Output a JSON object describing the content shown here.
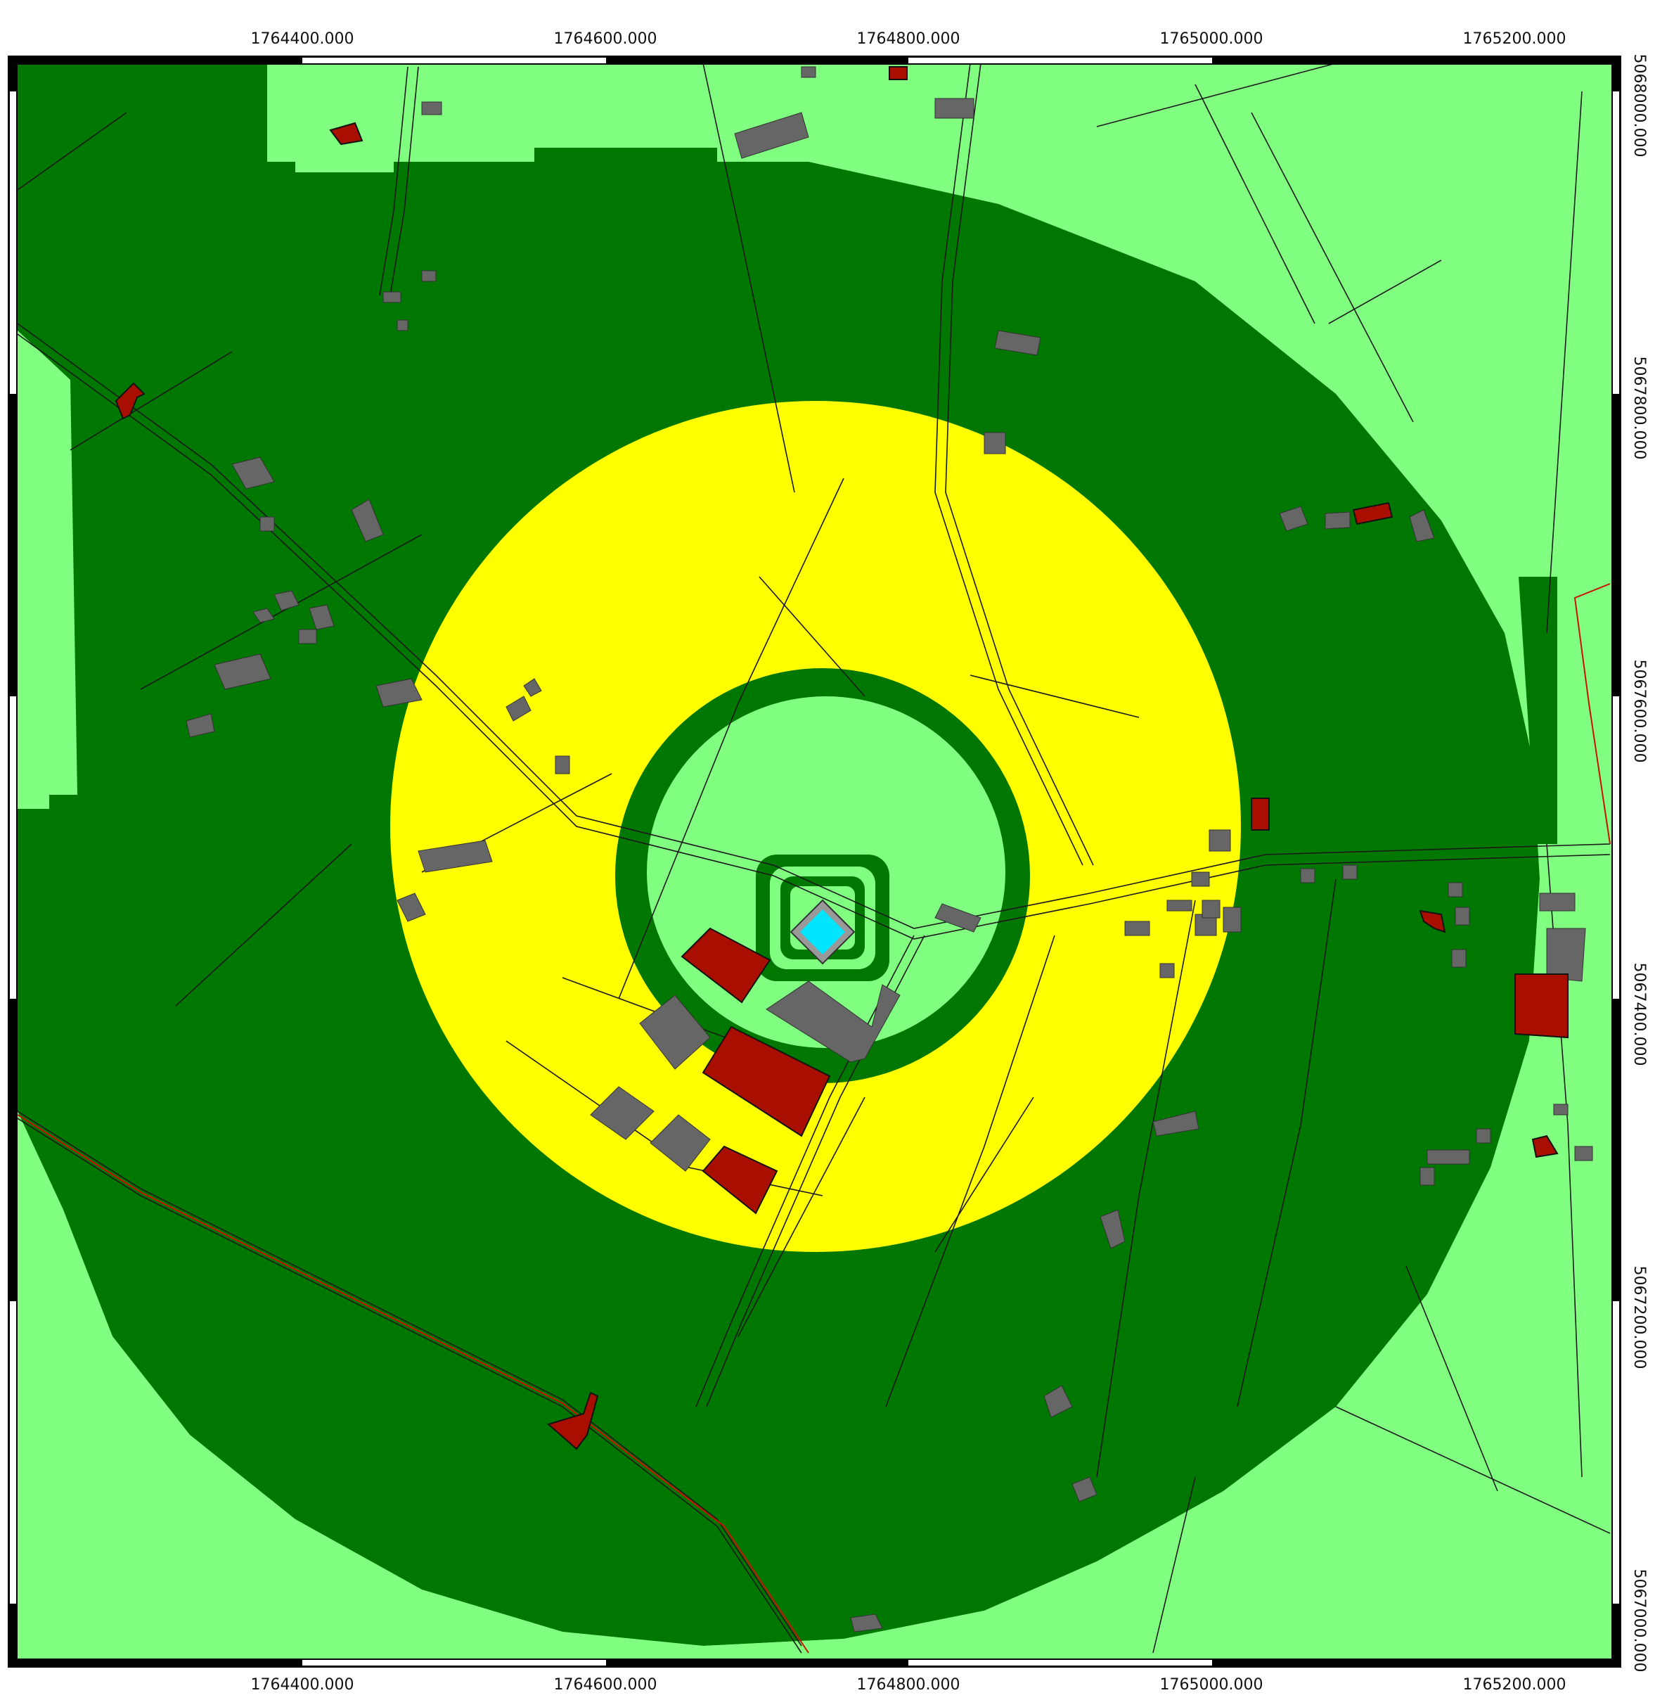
{
  "map": {
    "x_axis_labels_top": [
      "1764400.000",
      "1764600.000",
      "1764800.000",
      "1765000.000",
      "1765200.000"
    ],
    "x_axis_labels_bottom": [
      "1764400.000",
      "1764600.000",
      "1764800.000",
      "1765000.000",
      "1765200.000"
    ],
    "y_axis_labels_right": [
      "5068000.000",
      "5067800.000",
      "5067600.000",
      "5067400.000",
      "5067200.000",
      "5067000.000"
    ],
    "zone_colors": {
      "outer": "#80ff80",
      "ring_dark": "#007700",
      "ring_yellow": "#ffff00",
      "inner_light": "#80ff80",
      "source": "#00e5ff",
      "building_red": "#a80f00",
      "building_gray": "#666666"
    }
  }
}
